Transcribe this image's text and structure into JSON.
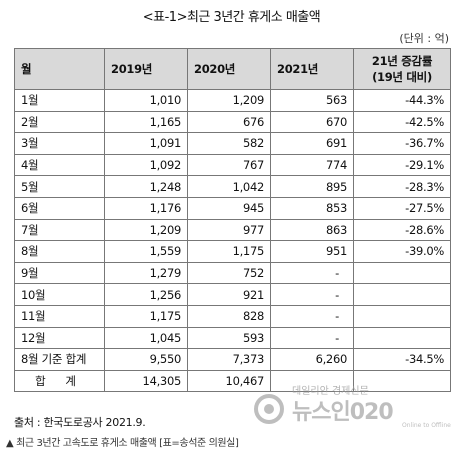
{
  "title": "<표-1>최근 3년간 휴게소 매출액",
  "unit": "(단위 : 억)",
  "table": {
    "headers": [
      "월",
      "2019년",
      "2020년",
      "2021년",
      "21년 증감률",
      "(19년 대비)"
    ],
    "rows": [
      {
        "label": "1월",
        "y2019": "1,010",
        "y2020": "1,209",
        "y2021": "563",
        "change": "-44.3%"
      },
      {
        "label": "2월",
        "y2019": "1,165",
        "y2020": "676",
        "y2021": "670",
        "change": "-42.5%"
      },
      {
        "label": "3월",
        "y2019": "1,091",
        "y2020": "582",
        "y2021": "691",
        "change": "-36.7%"
      },
      {
        "label": "4월",
        "y2019": "1,092",
        "y2020": "767",
        "y2021": "774",
        "change": "-29.1%"
      },
      {
        "label": "5월",
        "y2019": "1,248",
        "y2020": "1,042",
        "y2021": "895",
        "change": "-28.3%"
      },
      {
        "label": "6월",
        "y2019": "1,176",
        "y2020": "945",
        "y2021": "853",
        "change": "-27.5%"
      },
      {
        "label": "7월",
        "y2019": "1,209",
        "y2020": "977",
        "y2021": "863",
        "change": "-28.6%"
      },
      {
        "label": "8월",
        "y2019": "1,559",
        "y2020": "1,175",
        "y2021": "951",
        "change": "-39.0%"
      },
      {
        "label": "9월",
        "y2019": "1,279",
        "y2020": "752",
        "y2021": "-",
        "change": ""
      },
      {
        "label": "10월",
        "y2019": "1,256",
        "y2020": "921",
        "y2021": "-",
        "change": ""
      },
      {
        "label": "11월",
        "y2019": "1,175",
        "y2020": "828",
        "y2021": "-",
        "change": ""
      },
      {
        "label": "12월",
        "y2019": "1,045",
        "y2020": "593",
        "y2021": "-",
        "change": ""
      }
    ],
    "subtotal": {
      "label": "8월 기준 합계",
      "y2019": "9,550",
      "y2020": "7,373",
      "y2021": "6,260",
      "change": "-34.5%"
    },
    "total": {
      "label": "합 계",
      "y2019": "14,305",
      "y2020": "10,467",
      "y2021": "",
      "change": ""
    }
  },
  "source": "출처 : 한국도로공사 2021.9.",
  "caption": "▲ 최근 3년간 고속도로 휴게소 매출액 [표=송석준 의원실]",
  "watermark": {
    "small": "데일리안 경제신문",
    "big": "뉴스인020",
    "tag": "Online to Offline"
  }
}
